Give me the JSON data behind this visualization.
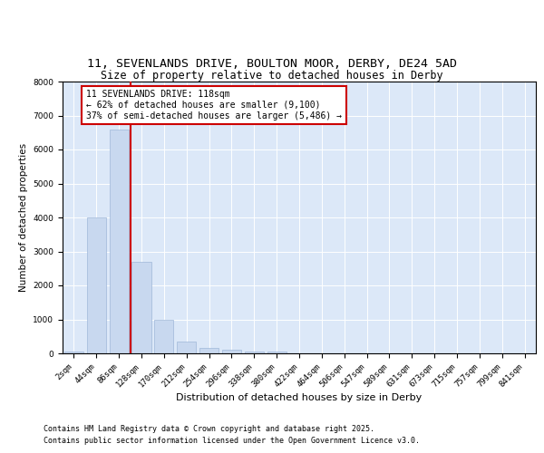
{
  "title1": "11, SEVENLANDS DRIVE, BOULTON MOOR, DERBY, DE24 5AD",
  "title2": "Size of property relative to detached houses in Derby",
  "xlabel": "Distribution of detached houses by size in Derby",
  "ylabel": "Number of detached properties",
  "categories": [
    "2sqm",
    "44sqm",
    "86sqm",
    "128sqm",
    "170sqm",
    "212sqm",
    "254sqm",
    "296sqm",
    "338sqm",
    "380sqm",
    "422sqm",
    "464sqm",
    "506sqm",
    "547sqm",
    "589sqm",
    "631sqm",
    "673sqm",
    "715sqm",
    "757sqm",
    "799sqm",
    "841sqm"
  ],
  "values": [
    50,
    4000,
    6600,
    2700,
    1000,
    350,
    150,
    120,
    50,
    50,
    5,
    0,
    0,
    0,
    0,
    0,
    0,
    0,
    0,
    0,
    0
  ],
  "bar_color": "#c8d8ef",
  "bar_edge_color": "#a0b8d8",
  "vline_color": "#cc0000",
  "vline_position": 2.5,
  "annotation_text": "11 SEVENLANDS DRIVE: 118sqm\n← 62% of detached houses are smaller (9,100)\n37% of semi-detached houses are larger (5,486) →",
  "annotation_box_color": "#cc0000",
  "ylim": [
    0,
    8000
  ],
  "yticks": [
    0,
    1000,
    2000,
    3000,
    4000,
    5000,
    6000,
    7000,
    8000
  ],
  "bg_color": "#dce8f8",
  "footer1": "Contains HM Land Registry data © Crown copyright and database right 2025.",
  "footer2": "Contains public sector information licensed under the Open Government Licence v3.0.",
  "title1_fontsize": 9.5,
  "title2_fontsize": 8.5,
  "xlabel_fontsize": 8,
  "ylabel_fontsize": 7.5,
  "tick_fontsize": 6.5,
  "annotation_fontsize": 7,
  "footer_fontsize": 6
}
